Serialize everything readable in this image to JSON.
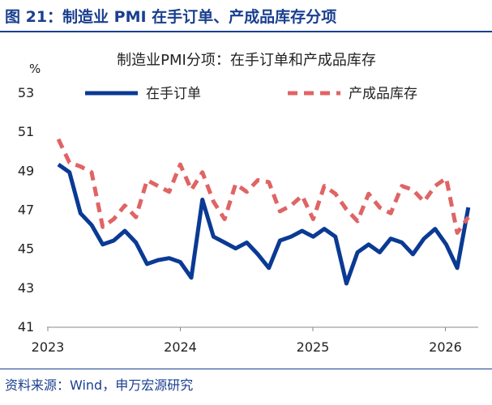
{
  "header": "图 21：制造业 PMI 在手订单、产成品库存分项",
  "source": "资料来源：Wind，申万宏源研究",
  "chart_data": {
    "type": "line",
    "title": "制造业PMI分项：在手订单和产成品库存",
    "ylabel": "%",
    "ylim": [
      41,
      53
    ],
    "yticks": [
      "53",
      "51",
      "49",
      "47",
      "45",
      "43",
      "41"
    ],
    "xticks": [
      "2023",
      "2024",
      "2025",
      "2026"
    ],
    "legend_position": "top",
    "series": [
      {
        "name": "在手订单",
        "color": "#0a3a94",
        "style": "solid",
        "values": [
          49.3,
          48.9,
          46.8,
          46.2,
          45.2,
          45.4,
          45.9,
          45.3,
          44.2,
          44.4,
          44.5,
          44.3,
          43.5,
          47.5,
          45.6,
          45.3,
          45.0,
          45.3,
          44.7,
          44.0,
          45.4,
          45.6,
          45.9,
          45.6,
          46.0,
          45.6,
          43.2,
          44.8,
          45.2,
          44.8,
          45.5,
          45.3,
          44.7,
          45.5,
          46.0,
          45.2,
          44.0,
          47.1
        ]
      },
      {
        "name": "产成品库存",
        "color": "#e06464",
        "style": "dashed",
        "values": [
          50.6,
          49.4,
          49.2,
          48.9,
          46.1,
          46.5,
          47.2,
          46.6,
          48.5,
          48.2,
          47.9,
          49.3,
          48.0,
          48.9,
          47.4,
          46.5,
          48.3,
          47.9,
          48.5,
          48.4,
          46.9,
          47.2,
          47.7,
          46.5,
          48.2,
          47.8,
          47.0,
          46.4,
          47.8,
          47.1,
          46.8,
          48.2,
          48.0,
          47.4,
          48.2,
          48.6,
          45.8,
          46.6
        ]
      }
    ]
  }
}
